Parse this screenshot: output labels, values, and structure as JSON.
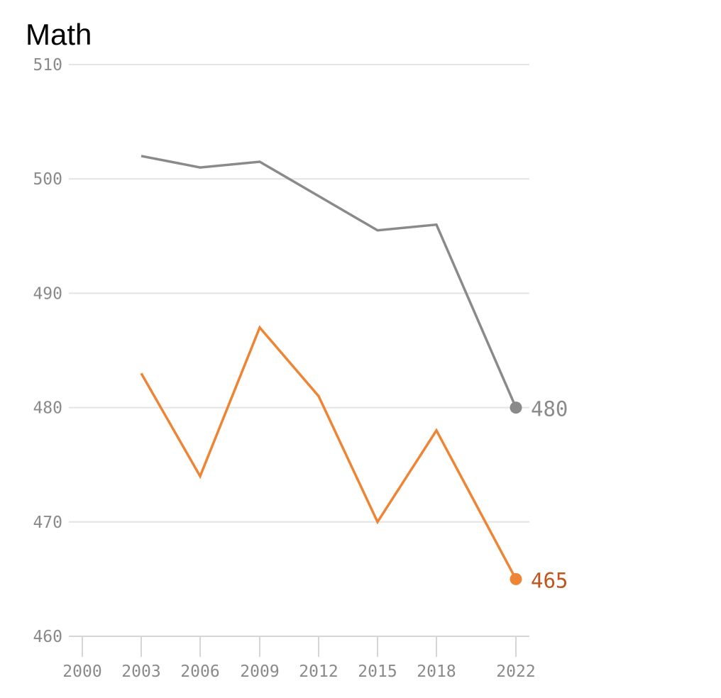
{
  "chart_data": {
    "type": "line",
    "title": "Math",
    "x": [
      2003,
      2006,
      2009,
      2012,
      2015,
      2018,
      2022
    ],
    "x_ticks": [
      2000,
      2003,
      2006,
      2009,
      2012,
      2015,
      2018,
      2022
    ],
    "y_ticks": [
      460,
      470,
      480,
      490,
      500,
      510
    ],
    "ylim": [
      460,
      510
    ],
    "xlim": [
      2000,
      2022
    ],
    "grid": "horizontal",
    "series": [
      {
        "values": [
          502,
          501,
          501.5,
          498.5,
          495.5,
          496,
          480
        ],
        "color": "#8a8a8a",
        "end_label": "480"
      },
      {
        "values": [
          483,
          474,
          487,
          481,
          470,
          478,
          465
        ],
        "color": "#ee8434",
        "label_color": "#c0561e",
        "end_label": "465"
      }
    ]
  }
}
